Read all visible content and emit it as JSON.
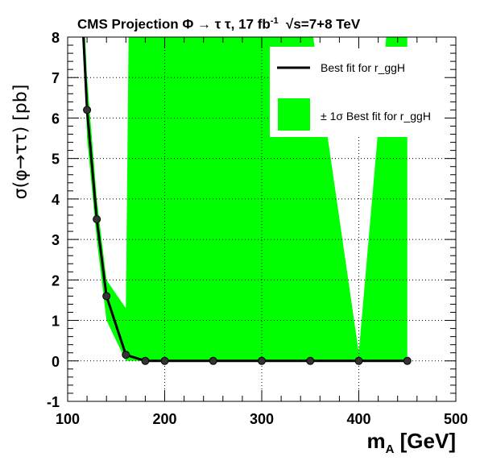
{
  "chart_data": {
    "type": "line",
    "title": "CMS Projection Φ → τ τ, 17 fb",
    "title_lumi_exp": "-1",
    "title_energy": "√s=7+8 TeV",
    "xlabel_main": "m",
    "xlabel_sub": "A",
    "xlabel_unit": " [GeV]",
    "ylabel": "σ(φ→ττ) [pb]",
    "xlim": [
      100,
      500
    ],
    "ylim": [
      -1,
      8
    ],
    "x_ticks": [
      100,
      200,
      300,
      400,
      500
    ],
    "y_ticks": [
      -1,
      0,
      1,
      2,
      3,
      4,
      5,
      6,
      7,
      8
    ],
    "grid": true,
    "legend_position": "top-right",
    "series": [
      {
        "name": "Best fit for r_ggH",
        "color": "#000000",
        "x": [
          110,
          120,
          130,
          140,
          160,
          180,
          200,
          250,
          300,
          350,
          400,
          450
        ],
        "y": [
          11.0,
          6.2,
          3.5,
          1.6,
          0.15,
          0.0,
          0.0,
          0.0,
          0.0,
          0.0,
          0.0,
          0.0
        ]
      }
    ],
    "band": {
      "name": "± 1σ Best fit for r_ggH",
      "color": "#00ff00",
      "x": [
        110,
        120,
        130,
        140,
        160,
        163,
        180,
        200,
        250,
        300,
        350,
        400,
        430,
        450
      ],
      "upper": [
        12,
        7.0,
        4.0,
        2.0,
        1.3,
        8.5,
        8.5,
        8.5,
        8.5,
        8.5,
        8.5,
        0.2,
        8.5,
        8.5
      ],
      "lower": [
        12,
        5.5,
        3.0,
        1.0,
        0.0,
        0.0,
        0.0,
        0.0,
        0.0,
        0.0,
        0.0,
        0.0,
        0.0,
        0.0
      ]
    }
  }
}
